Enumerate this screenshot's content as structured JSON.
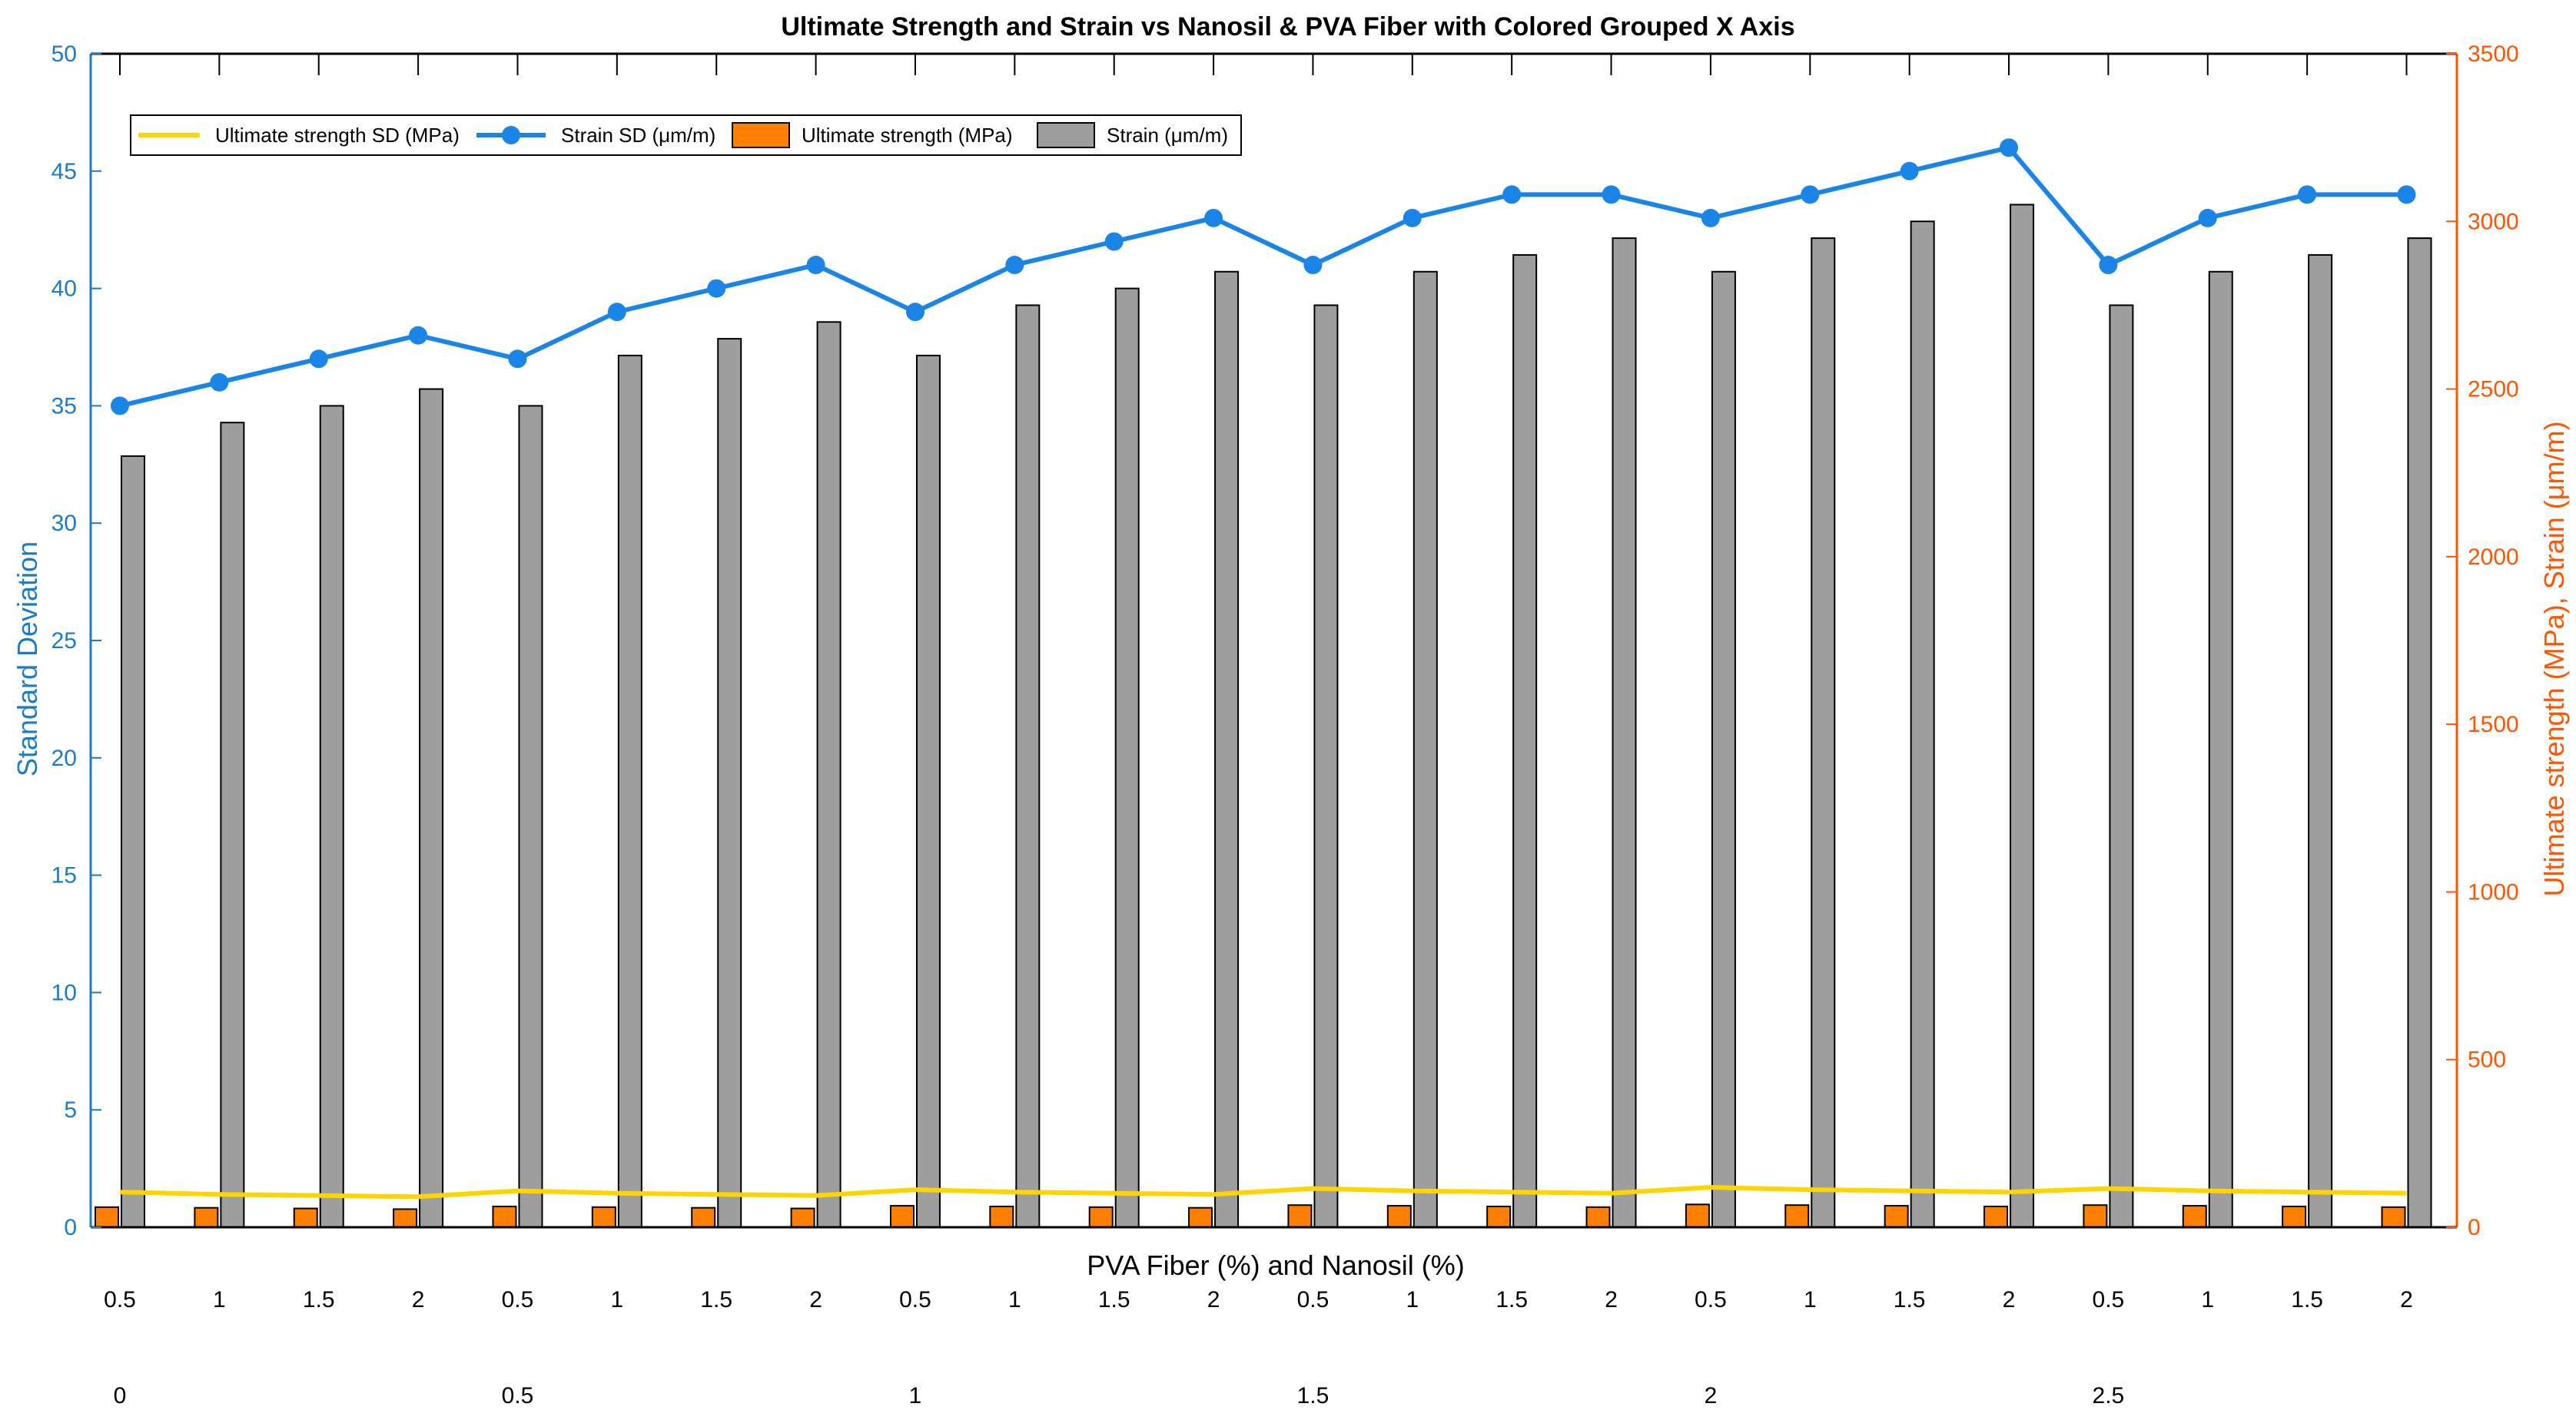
{
  "chart_data": {
    "type": "bar",
    "title": "Ultimate Strength and Strain vs Nanosil & PVA Fiber with Colored Grouped X Axis",
    "xlabel": "PVA Fiber (%) and Nanosil (%)",
    "ylabel_left": "Standard Deviation",
    "ylabel_right": "Ultimate strength (MPa), Strain (μm/m)",
    "ylim_left": [
      0,
      50
    ],
    "ylim_right": [
      0,
      3500
    ],
    "yticks_left": [
      "0",
      "5",
      "10",
      "15",
      "20",
      "25",
      "30",
      "35",
      "40",
      "45",
      "50"
    ],
    "yticks_right": [
      "0",
      "500",
      "1000",
      "1500",
      "2000",
      "2500",
      "3000",
      "3500"
    ],
    "grid": false,
    "legend_position": "top-left",
    "legend": [
      "Ultimate strength SD (MPa)",
      "Strain SD (μm/m)",
      "Ultimate strength (MPa)",
      "Strain (μm/m)"
    ],
    "categories": [
      "0.5",
      "1",
      "1.5",
      "2",
      "0.5",
      "1",
      "1.5",
      "2",
      "0.5",
      "1",
      "1.5",
      "2",
      "0.5",
      "1",
      "1.5",
      "2",
      "0.5",
      "1",
      "1.5",
      "2",
      "0.5",
      "1",
      "1.5",
      "2"
    ],
    "groups": [
      "0",
      "0.5",
      "1",
      "1.5",
      "2",
      "2.5"
    ],
    "series": [
      {
        "name": "Ultimate strength SD (MPa)",
        "axis": "left",
        "kind": "line",
        "color": "#FFD400",
        "values": [
          1.5,
          1.4,
          1.35,
          1.3,
          1.55,
          1.45,
          1.4,
          1.35,
          1.6,
          1.5,
          1.45,
          1.4,
          1.65,
          1.55,
          1.5,
          1.45,
          1.7,
          1.6,
          1.55,
          1.5,
          1.65,
          1.55,
          1.5,
          1.45
        ]
      },
      {
        "name": "Strain SD (μm/m)",
        "axis": "left",
        "kind": "line-marker",
        "color": "#1A85E6",
        "values": [
          35,
          36,
          37,
          38,
          37,
          39,
          40,
          41,
          39,
          41,
          42,
          43,
          41,
          43,
          44,
          44,
          43,
          44,
          45,
          46,
          41,
          43,
          44,
          44
        ]
      },
      {
        "name": "Ultimate strength (MPa)",
        "axis": "right",
        "kind": "bar",
        "color": "#FF8000",
        "values": [
          60,
          58,
          56,
          54,
          62,
          60,
          58,
          56,
          64,
          62,
          60,
          58,
          66,
          64,
          62,
          60,
          68,
          66,
          64,
          62,
          66,
          64,
          62,
          60
        ]
      },
      {
        "name": "Strain (μm/m)",
        "axis": "right",
        "kind": "bar",
        "color": "#9E9E9E",
        "values": [
          2300,
          2400,
          2450,
          2500,
          2450,
          2600,
          2650,
          2700,
          2600,
          2750,
          2800,
          2850,
          2750,
          2850,
          2900,
          2950,
          2850,
          2950,
          3000,
          3050,
          2750,
          2850,
          2900,
          2950
        ]
      }
    ]
  },
  "colors": {
    "left_axis": "#1A7BC8",
    "right_axis": "#FF5500"
  }
}
